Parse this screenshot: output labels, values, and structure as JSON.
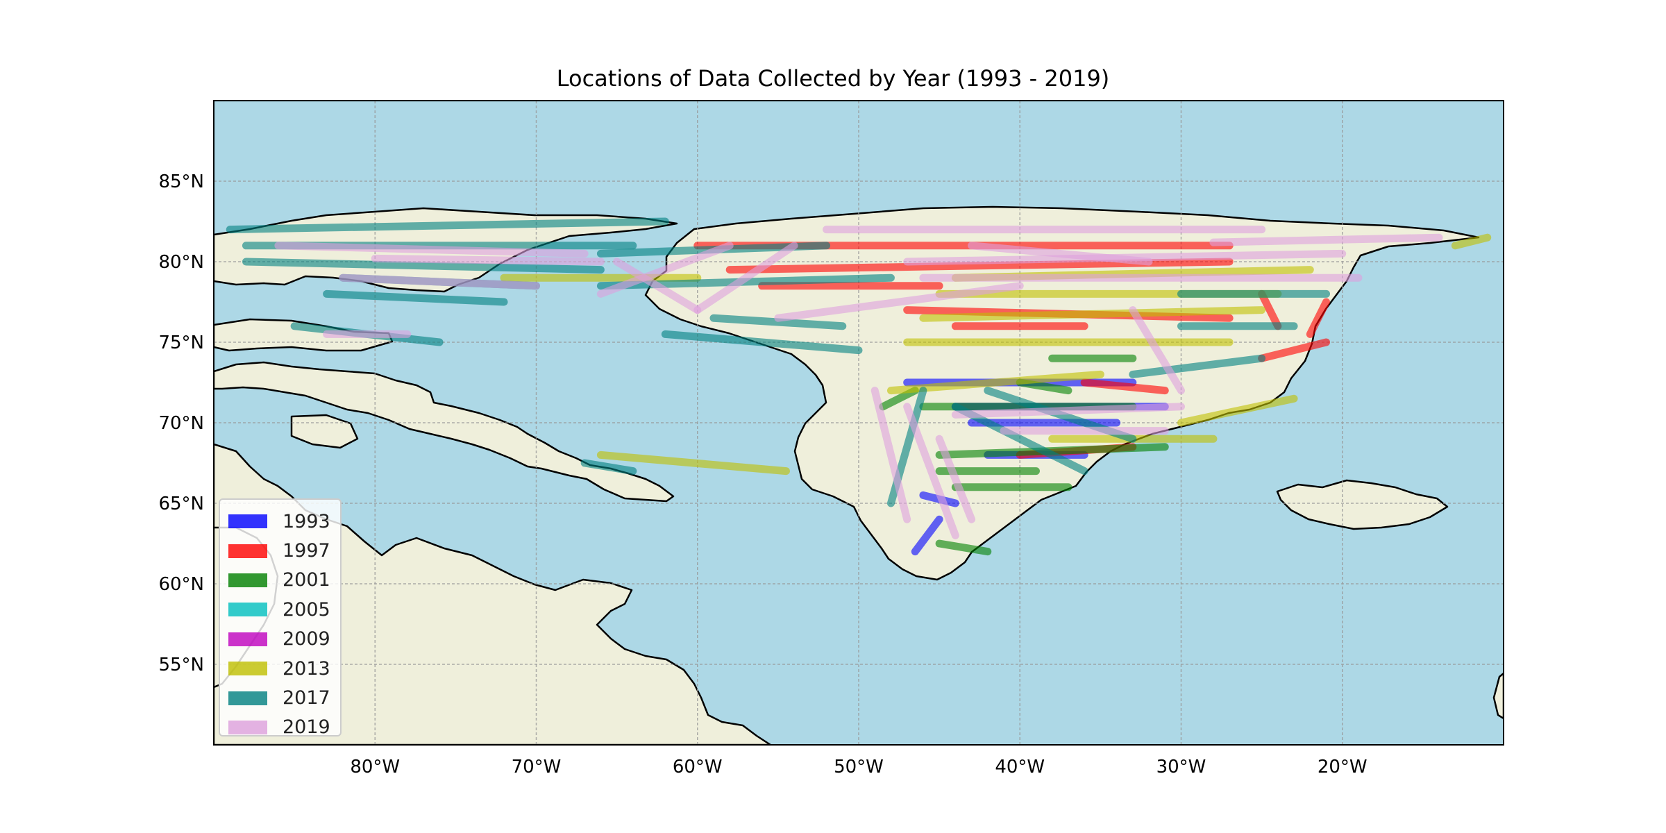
{
  "map": {
    "title": "Locations of Data Collected by Year (1993 - 2019)",
    "projection": "PlateCarree",
    "extent": {
      "lon": [
        -90,
        -10
      ],
      "lat": [
        50,
        90
      ]
    },
    "ocean_color": "#add8e6",
    "land_color": "#efefdb",
    "coastline_color": "#000000",
    "gridlines": true,
    "lon_ticks": [
      -80,
      -70,
      -60,
      -50,
      -40,
      -30,
      -20
    ],
    "lon_tick_labels": [
      "80°W",
      "70°W",
      "60°W",
      "50°W",
      "40°W",
      "30°W",
      "20°W"
    ],
    "lat_ticks": [
      55,
      60,
      65,
      70,
      75,
      80,
      85
    ],
    "lat_tick_labels": [
      "55°N",
      "60°N",
      "65°N",
      "70°N",
      "75°N",
      "80°N",
      "85°N"
    ]
  },
  "legend": {
    "placement": "lower-left",
    "items": [
      {
        "label": "1993",
        "color": "#0000ff"
      },
      {
        "label": "1997",
        "color": "#ff0000"
      },
      {
        "label": "2001",
        "color": "#008000"
      },
      {
        "label": "2005",
        "color": "#00bfbf"
      },
      {
        "label": "2009",
        "color": "#bf00bf"
      },
      {
        "label": "2013",
        "color": "#bfbf00"
      },
      {
        "label": "2017",
        "color": "#008080"
      },
      {
        "label": "2019",
        "color": "#dda0dd"
      }
    ]
  },
  "chart_data": {
    "type": "scatter",
    "x_label": "",
    "y_label": "",
    "xlim": [
      -90,
      -10
    ],
    "ylim": [
      50,
      90
    ],
    "series": [
      {
        "name": "1993",
        "color": "#0000ff",
        "tracks": [
          [
            [
              -47,
              72.5
            ],
            [
              -33,
              72.5
            ]
          ],
          [
            [
              -44,
              71
            ],
            [
              -31,
              71
            ]
          ],
          [
            [
              -43,
              70
            ],
            [
              -34,
              70
            ]
          ],
          [
            [
              -42,
              68
            ],
            [
              -36,
              68
            ]
          ],
          [
            [
              -46,
              65.5
            ],
            [
              -44,
              65
            ]
          ],
          [
            [
              -46.5,
              62
            ],
            [
              -45,
              64
            ]
          ]
        ]
      },
      {
        "name": "1997",
        "color": "#ff0000",
        "tracks": [
          [
            [
              -60,
              81
            ],
            [
              -27,
              81
            ]
          ],
          [
            [
              -58,
              79.5
            ],
            [
              -27,
              80
            ]
          ],
          [
            [
              -56,
              78.5
            ],
            [
              -45,
              78.5
            ]
          ],
          [
            [
              -47,
              77
            ],
            [
              -27,
              76.5
            ]
          ],
          [
            [
              -25,
              74
            ],
            [
              -21,
              75
            ]
          ],
          [
            [
              -22,
              75.5
            ],
            [
              -21,
              77.5
            ]
          ],
          [
            [
              -44,
              76
            ],
            [
              -36,
              76
            ]
          ],
          [
            [
              -40,
              68
            ],
            [
              -33,
              68.5
            ]
          ],
          [
            [
              -36,
              72.5
            ],
            [
              -31,
              72
            ]
          ],
          [
            [
              -25,
              78
            ],
            [
              -24,
              76
            ]
          ]
        ]
      },
      {
        "name": "2001",
        "color": "#008000",
        "tracks": [
          [
            [
              -38,
              74
            ],
            [
              -33,
              74
            ]
          ],
          [
            [
              -46,
              71
            ],
            [
              -33,
              71
            ]
          ],
          [
            [
              -45,
              68
            ],
            [
              -31,
              68.5
            ]
          ],
          [
            [
              -45,
              67
            ],
            [
              -39,
              67
            ]
          ],
          [
            [
              -44,
              66
            ],
            [
              -37,
              66
            ]
          ],
          [
            [
              -45,
              62.5
            ],
            [
              -42,
              62
            ]
          ],
          [
            [
              -48.5,
              71
            ],
            [
              -46.5,
              72
            ]
          ],
          [
            [
              -40,
              72.5
            ],
            [
              -37,
              72
            ]
          ]
        ]
      },
      {
        "name": "2013",
        "color": "#bfbf00",
        "tracks": [
          [
            [
              -72,
              79
            ],
            [
              -60,
              79
            ]
          ],
          [
            [
              -66,
              68
            ],
            [
              -54.5,
              67
            ]
          ],
          [
            [
              -48,
              72
            ],
            [
              -35,
              73
            ]
          ],
          [
            [
              -47,
              75
            ],
            [
              -27,
              75
            ]
          ],
          [
            [
              -46,
              76.5
            ],
            [
              -25,
              77
            ]
          ],
          [
            [
              -45,
              78
            ],
            [
              -24,
              78
            ]
          ],
          [
            [
              -44,
              79
            ],
            [
              -22,
              79.5
            ]
          ],
          [
            [
              -38,
              69
            ],
            [
              -28,
              69
            ]
          ],
          [
            [
              -30,
              70
            ],
            [
              -23,
              71.5
            ]
          ],
          [
            [
              -13,
              81
            ],
            [
              -11,
              81.5
            ]
          ]
        ]
      },
      {
        "name": "2017",
        "color": "#008080",
        "tracks": [
          [
            [
              -89,
              82
            ],
            [
              -62,
              82.5
            ]
          ],
          [
            [
              -88,
              81
            ],
            [
              -64,
              81
            ]
          ],
          [
            [
              -88,
              80
            ],
            [
              -66,
              79.5
            ]
          ],
          [
            [
              -82,
              79
            ],
            [
              -70,
              78.5
            ]
          ],
          [
            [
              -83,
              78
            ],
            [
              -72,
              77.5
            ]
          ],
          [
            [
              -85,
              76
            ],
            [
              -76,
              75
            ]
          ],
          [
            [
              -62,
              75.5
            ],
            [
              -50,
              74.5
            ]
          ],
          [
            [
              -59,
              76.5
            ],
            [
              -51,
              76
            ]
          ],
          [
            [
              -66,
              78.5
            ],
            [
              -48,
              79
            ]
          ],
          [
            [
              -66,
              80.5
            ],
            [
              -52,
              81
            ]
          ],
          [
            [
              -46,
              72
            ],
            [
              -48,
              65
            ]
          ],
          [
            [
              -44,
              71
            ],
            [
              -36,
              67
            ]
          ],
          [
            [
              -42,
              72
            ],
            [
              -33,
              69
            ]
          ],
          [
            [
              -30,
              78
            ],
            [
              -21,
              78
            ]
          ],
          [
            [
              -30,
              76
            ],
            [
              -23,
              76
            ]
          ],
          [
            [
              -33,
              73
            ],
            [
              -25,
              74
            ]
          ],
          [
            [
              -67,
              67.5
            ],
            [
              -64,
              67
            ]
          ]
        ]
      },
      {
        "name": "2019",
        "color": "#dda0dd",
        "tracks": [
          [
            [
              -86,
              81
            ],
            [
              -67,
              80.5
            ]
          ],
          [
            [
              -82,
              79
            ],
            [
              -70,
              78.5
            ]
          ],
          [
            [
              -80,
              80.2
            ],
            [
              -66,
              80
            ]
          ],
          [
            [
              -83,
              75.5
            ],
            [
              -78,
              75.5
            ]
          ],
          [
            [
              -66,
              78
            ],
            [
              -58,
              81
            ]
          ],
          [
            [
              -60,
              77
            ],
            [
              -54,
              81
            ]
          ],
          [
            [
              -55,
              76.5
            ],
            [
              -40,
              78.5
            ]
          ],
          [
            [
              -52,
              82
            ],
            [
              -25,
              82
            ]
          ],
          [
            [
              -47,
              80
            ],
            [
              -20,
              80.5
            ]
          ],
          [
            [
              -46,
              79
            ],
            [
              -19,
              79
            ]
          ],
          [
            [
              -28,
              81.2
            ],
            [
              -14,
              81.5
            ]
          ],
          [
            [
              -49,
              72
            ],
            [
              -47,
              64
            ]
          ],
          [
            [
              -47,
              71
            ],
            [
              -44,
              63
            ]
          ],
          [
            [
              -45,
              69
            ],
            [
              -43,
              64
            ]
          ],
          [
            [
              -44,
              70.5
            ],
            [
              -30,
              71
            ]
          ],
          [
            [
              -41,
              69.5
            ],
            [
              -31,
              69.5
            ]
          ],
          [
            [
              -33,
              77
            ],
            [
              -30,
              72
            ]
          ],
          [
            [
              -43,
              81
            ],
            [
              -32,
              80
            ]
          ],
          [
            [
              -65,
              80
            ],
            [
              -60,
              77
            ]
          ]
        ]
      }
    ]
  }
}
